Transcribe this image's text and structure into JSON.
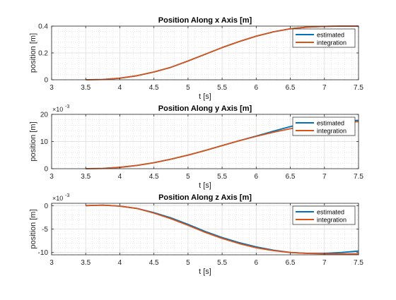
{
  "chart_data": [
    {
      "type": "line",
      "title": "Position Along x Axis [m]",
      "xlabel": "t [s]",
      "ylabel": "position [m]",
      "exponent_label": "",
      "xlim": [
        3,
        7.5
      ],
      "ylim": [
        0,
        0.4
      ],
      "xticks": [
        3,
        3.5,
        4,
        4.5,
        5,
        5.5,
        6,
        6.5,
        7,
        7.5
      ],
      "xtick_labels": [
        "3",
        "3.5",
        "4",
        "4.5",
        "5",
        "5.5",
        "6",
        "6.5",
        "7",
        "7.5"
      ],
      "yticks": [
        0,
        0.2,
        0.4
      ],
      "ytick_labels": [
        "0",
        "0.2",
        "0.4"
      ],
      "grid": true,
      "minor_grid": true,
      "legend_position": "top-right",
      "series": [
        {
          "name": "estimated",
          "color": "#0072BD",
          "x": [
            3.5,
            3.75,
            4,
            4.25,
            4.5,
            4.75,
            5,
            5.25,
            5.5,
            5.75,
            6,
            6.25,
            6.5,
            6.75,
            7,
            7.25,
            7.5
          ],
          "y": [
            0,
            0.002,
            0.012,
            0.03,
            0.058,
            0.093,
            0.14,
            0.19,
            0.24,
            0.285,
            0.325,
            0.357,
            0.38,
            0.393,
            0.398,
            0.4,
            0.4
          ]
        },
        {
          "name": "integration",
          "color": "#D95319",
          "x": [
            3.5,
            3.75,
            4,
            4.25,
            4.5,
            4.75,
            5,
            5.25,
            5.5,
            5.75,
            6,
            6.25,
            6.5,
            6.75,
            7,
            7.25,
            7.5
          ],
          "y": [
            0,
            0.002,
            0.012,
            0.03,
            0.058,
            0.093,
            0.14,
            0.19,
            0.24,
            0.285,
            0.325,
            0.357,
            0.38,
            0.393,
            0.398,
            0.4,
            0.4
          ]
        }
      ]
    },
    {
      "type": "line",
      "title": "Position Along y Axis [m]",
      "xlabel": "t [s]",
      "ylabel": "position [m]",
      "exponent_label": "×10",
      "exponent_power": "-3",
      "xlim": [
        3,
        7.5
      ],
      "ylim": [
        0,
        20
      ],
      "xticks": [
        3,
        3.5,
        4,
        4.5,
        5,
        5.5,
        6,
        6.5,
        7,
        7.5
      ],
      "xtick_labels": [
        "3",
        "3.5",
        "4",
        "4.5",
        "5",
        "5.5",
        "6",
        "6.5",
        "7",
        "7.5"
      ],
      "yticks": [
        0,
        10,
        20
      ],
      "ytick_labels": [
        "0",
        "10",
        "20"
      ],
      "grid": true,
      "minor_grid": true,
      "legend_position": "top-right",
      "series": [
        {
          "name": "estimated",
          "color": "#0072BD",
          "x": [
            3.5,
            3.75,
            4,
            4.25,
            4.5,
            4.75,
            5,
            5.25,
            5.5,
            5.75,
            6,
            6.25,
            6.5,
            6.75,
            7,
            7.25,
            7.5
          ],
          "y": [
            0,
            0.1,
            0.5,
            1.2,
            2.2,
            3.5,
            5,
            6.7,
            8.5,
            10.3,
            12,
            13.8,
            15.5,
            16.8,
            17.3,
            17.6,
            17.8
          ]
        },
        {
          "name": "integration",
          "color": "#D95319",
          "x": [
            3.5,
            3.75,
            4,
            4.25,
            4.5,
            4.75,
            5,
            5.25,
            5.5,
            5.75,
            6,
            6.25,
            6.5,
            6.75,
            7,
            7.25,
            7.5
          ],
          "y": [
            0,
            0.1,
            0.5,
            1.2,
            2.2,
            3.5,
            5,
            6.7,
            8.5,
            10.3,
            11.9,
            13.4,
            14.7,
            15.8,
            16.6,
            17.1,
            17.3
          ]
        }
      ]
    },
    {
      "type": "line",
      "title": "Position Along z Axis [m]",
      "xlabel": "t [s]",
      "ylabel": "position [m]",
      "exponent_label": "×10",
      "exponent_power": "-3",
      "xlim": [
        3,
        7.5
      ],
      "ylim": [
        -10.5,
        0.5
      ],
      "xticks": [
        3,
        3.5,
        4,
        4.5,
        5,
        5.5,
        6,
        6.5,
        7,
        7.5
      ],
      "xtick_labels": [
        "3",
        "3.5",
        "4",
        "4.5",
        "5",
        "5.5",
        "6",
        "6.5",
        "7",
        "7.5"
      ],
      "yticks": [
        -10,
        -5,
        0
      ],
      "ytick_labels": [
        "-10",
        "-5",
        "0"
      ],
      "grid": true,
      "minor_grid": true,
      "legend_position": "top-right",
      "series": [
        {
          "name": "estimated",
          "color": "#0072BD",
          "x": [
            3.5,
            3.75,
            4,
            4.25,
            4.5,
            4.75,
            5,
            5.25,
            5.5,
            5.75,
            6,
            6.25,
            6.5,
            6.75,
            7,
            7.25,
            7.5
          ],
          "y": [
            0,
            0.1,
            -0.1,
            -0.6,
            -1.5,
            -2.6,
            -4.0,
            -5.5,
            -6.8,
            -7.9,
            -8.8,
            -9.5,
            -10.0,
            -10.2,
            -10.2,
            -10.0,
            -9.7
          ]
        },
        {
          "name": "integration",
          "color": "#D95319",
          "x": [
            3.5,
            3.75,
            4,
            4.25,
            4.5,
            4.75,
            5,
            5.25,
            5.5,
            5.75,
            6,
            6.25,
            6.5,
            6.75,
            7,
            7.25,
            7.5
          ],
          "y": [
            0,
            0.1,
            -0.1,
            -0.6,
            -1.6,
            -2.8,
            -4.2,
            -5.7,
            -7.0,
            -8.1,
            -9.0,
            -9.6,
            -10.0,
            -10.2,
            -10.3,
            -10.3,
            -10.3
          ]
        }
      ]
    }
  ]
}
